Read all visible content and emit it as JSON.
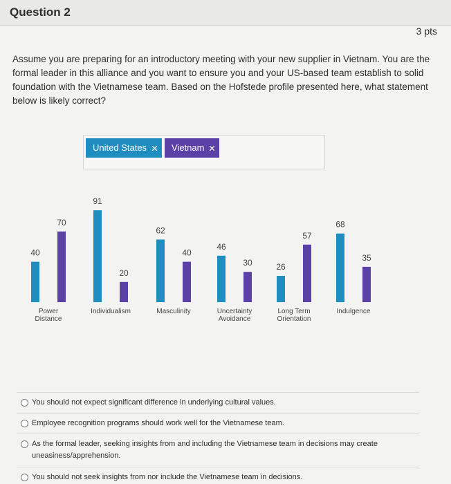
{
  "question": {
    "title": "Question 2",
    "points": "3 pts"
  },
  "prompt": "Assume you are preparing for an introductory meeting with your new supplier in Vietnam. You are the formal leader in this alliance and you want to ensure you and your US-based team establish to solid foundation with the Vietnamese team. Based on the Hofstede profile presented here, what statement below is likely correct?",
  "chart_data": {
    "type": "bar",
    "categories": [
      "Power Distance",
      "Individualism",
      "Masculinity",
      "Uncertainty Avoidance",
      "Long Term Orientation",
      "Indulgence"
    ],
    "series": [
      {
        "name": "United States",
        "color": "#1f8dbf",
        "values": [
          40,
          91,
          62,
          46,
          26,
          68
        ]
      },
      {
        "name": "Vietnam",
        "color": "#5b40a8",
        "values": [
          70,
          20,
          40,
          30,
          57,
          35
        ]
      }
    ]
  },
  "options": [
    "You should not expect significant difference in underlying cultural values.",
    "Employee recognition programs should work well for the Vietnamese team.",
    "As the formal leader, seeking insights from and including the Vietnamese team in decisions may create uneasiness/apprehension.",
    "You should not seek insights from nor include the Vietnamese team in decisions."
  ]
}
